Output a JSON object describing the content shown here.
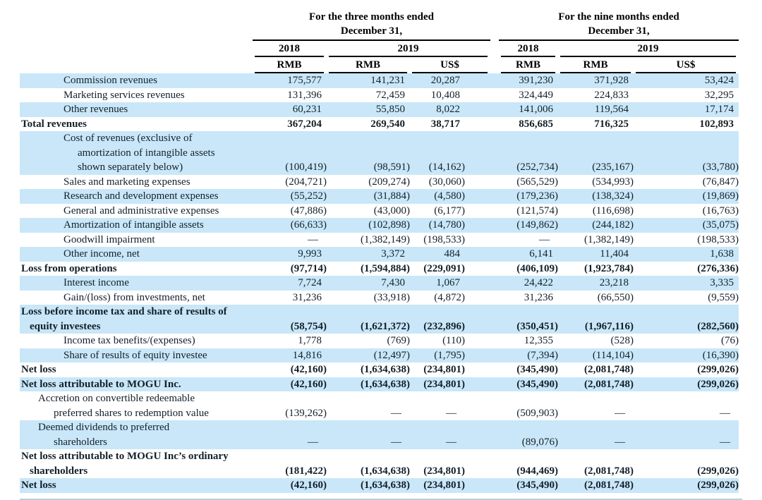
{
  "header": {
    "groups": [
      {
        "title1": "For the three months ended",
        "title2": "December 31,",
        "years": [
          {
            "label": "2018"
          },
          {
            "label": "2019"
          }
        ],
        "currencies": [
          "RMB",
          "RMB",
          "US$"
        ]
      },
      {
        "title1": "For the nine months ended",
        "title2": "December 31,",
        "years": [
          {
            "label": "2018"
          },
          {
            "label": "2019"
          }
        ],
        "currencies": [
          "RMB",
          "RMB",
          "US$"
        ]
      }
    ]
  },
  "rows": [
    {
      "shaded": true,
      "bold": false,
      "lines": [
        {
          "t": "Commission revenues",
          "i": 4
        }
      ],
      "values": [
        "175,577",
        "141,231",
        "20,287",
        "391,230",
        "371,928",
        "53,424"
      ]
    },
    {
      "shaded": false,
      "bold": false,
      "lines": [
        {
          "t": "Marketing services revenues",
          "i": 4
        }
      ],
      "values": [
        "131,396",
        "72,459",
        "10,408",
        "324,449",
        "224,833",
        "32,295"
      ]
    },
    {
      "shaded": true,
      "bold": false,
      "lines": [
        {
          "t": "Other revenues",
          "i": 4
        }
      ],
      "values": [
        "60,231",
        "55,850",
        "8,022",
        "141,006",
        "119,564",
        "17,174"
      ]
    },
    {
      "shaded": false,
      "bold": true,
      "lines": [
        {
          "t": "Total revenues",
          "i": 0
        }
      ],
      "values": [
        "367,204",
        "269,540",
        "38,717",
        "856,685",
        "716,325",
        "102,893"
      ]
    },
    {
      "shaded": true,
      "bold": false,
      "lines": [
        {
          "t": "Cost of revenues (exclusive of",
          "i": 4
        },
        {
          "t": "amortization of intangible assets",
          "i": 5
        },
        {
          "t": "shown separately below)",
          "i": 5
        }
      ],
      "values": [
        "(100,419)",
        "(98,591)",
        "(14,162)",
        "(252,734)",
        "(235,167)",
        "(33,780)"
      ]
    },
    {
      "shaded": false,
      "bold": false,
      "lines": [
        {
          "t": "Sales and marketing expenses",
          "i": 4
        }
      ],
      "values": [
        "(204,721)",
        "(209,274)",
        "(30,060)",
        "(565,529)",
        "(534,993)",
        "(76,847)"
      ]
    },
    {
      "shaded": true,
      "bold": false,
      "lines": [
        {
          "t": "Research and development expenses",
          "i": 4
        }
      ],
      "values": [
        "(55,252)",
        "(31,884)",
        "(4,580)",
        "(179,236)",
        "(138,324)",
        "(19,869)"
      ]
    },
    {
      "shaded": false,
      "bold": false,
      "lines": [
        {
          "t": "General and administrative expenses",
          "i": 4
        }
      ],
      "values": [
        "(47,886)",
        "(43,000)",
        "(6,177)",
        "(121,574)",
        "(116,698)",
        "(16,763)"
      ]
    },
    {
      "shaded": true,
      "bold": false,
      "lines": [
        {
          "t": "Amortization of intangible assets",
          "i": 4
        }
      ],
      "values": [
        "(66,633)",
        "(102,898)",
        "(14,780)",
        "(149,862)",
        "(244,182)",
        "(35,075)"
      ]
    },
    {
      "shaded": false,
      "bold": false,
      "lines": [
        {
          "t": "Goodwill impairment",
          "i": 4
        }
      ],
      "values": [
        "—",
        "(1,382,149)",
        "(198,533)",
        "—",
        "(1,382,149)",
        "(198,533)"
      ]
    },
    {
      "shaded": true,
      "bold": false,
      "lines": [
        {
          "t": "Other income, net",
          "i": 4
        }
      ],
      "values": [
        "9,993",
        "3,372",
        "484",
        "6,141",
        "11,404",
        "1,638"
      ]
    },
    {
      "shaded": false,
      "bold": true,
      "lines": [
        {
          "t": "Loss from operations",
          "i": 0
        }
      ],
      "values": [
        "(97,714)",
        "(1,594,884)",
        "(229,091)",
        "(406,109)",
        "(1,923,784)",
        "(276,336)"
      ]
    },
    {
      "shaded": true,
      "bold": false,
      "lines": [
        {
          "t": "Interest income",
          "i": 4
        }
      ],
      "values": [
        "7,724",
        "7,430",
        "1,067",
        "24,422",
        "23,218",
        "3,335"
      ]
    },
    {
      "shaded": false,
      "bold": false,
      "lines": [
        {
          "t": "Gain/(loss) from investments, net",
          "i": 4
        }
      ],
      "values": [
        "31,236",
        "(33,918)",
        "(4,872)",
        "31,236",
        "(66,550)",
        "(9,559)"
      ]
    },
    {
      "shaded": true,
      "bold": true,
      "lines": [
        {
          "t": "Loss before income tax and share of results of",
          "i": 0
        },
        {
          "t": "equity investees",
          "i": 1
        }
      ],
      "values": [
        "(58,754)",
        "(1,621,372)",
        "(232,896)",
        "(350,451)",
        "(1,967,116)",
        "(282,560)"
      ]
    },
    {
      "shaded": false,
      "bold": false,
      "lines": [
        {
          "t": "Income tax benefits/(expenses)",
          "i": 4
        }
      ],
      "values": [
        "1,778",
        "(769)",
        "(110)",
        "12,355",
        "(528)",
        "(76)"
      ]
    },
    {
      "shaded": true,
      "bold": false,
      "lines": [
        {
          "t": "Share of results of equity investee",
          "i": 4
        }
      ],
      "values": [
        "14,816",
        "(12,497)",
        "(1,795)",
        "(7,394)",
        "(114,104)",
        "(16,390)"
      ]
    },
    {
      "shaded": false,
      "bold": true,
      "lines": [
        {
          "t": "Net loss",
          "i": 0
        }
      ],
      "values": [
        "(42,160)",
        "(1,634,638)",
        "(234,801)",
        "(345,490)",
        "(2,081,748)",
        "(299,026)"
      ]
    },
    {
      "shaded": true,
      "bold": true,
      "lines": [
        {
          "t": "Net loss attributable to MOGU Inc.",
          "i": 0
        }
      ],
      "values": [
        "(42,160)",
        "(1,634,638)",
        "(234,801)",
        "(345,490)",
        "(2,081,748)",
        "(299,026)"
      ]
    },
    {
      "shaded": false,
      "bold": false,
      "lines": [
        {
          "t": "Accretion on convertible redeemable",
          "i": 2
        },
        {
          "t": "preferred shares to redemption value",
          "i": 3
        }
      ],
      "values": [
        "(139,262)",
        "—",
        "—",
        "(509,903)",
        "—",
        "—"
      ]
    },
    {
      "shaded": true,
      "bold": false,
      "lines": [
        {
          "t": "Deemed dividends to preferred",
          "i": 2
        },
        {
          "t": "shareholders",
          "i": 3
        }
      ],
      "values": [
        "—",
        "—",
        "—",
        "(89,076)",
        "—",
        "—"
      ]
    },
    {
      "shaded": false,
      "bold": true,
      "lines": [
        {
          "t": "Net loss attributable to MOGU Inc’s ordinary",
          "i": 0
        },
        {
          "t": "shareholders",
          "i": 1
        }
      ],
      "values": [
        "(181,422)",
        "(1,634,638)",
        "(234,801)",
        "(944,469)",
        "(2,081,748)",
        "(299,026)"
      ]
    },
    {
      "shaded": true,
      "bold": true,
      "lines": [
        {
          "t": "Net loss",
          "i": 0
        }
      ],
      "values": [
        "(42,160)",
        "(1,634,638)",
        "(234,801)",
        "(345,490)",
        "(2,081,748)",
        "(299,026)"
      ]
    }
  ],
  "colors": {
    "stripe": "#c9e7f8",
    "text": "#13202a",
    "rule": "#000000",
    "divider": "#b9cfdc"
  }
}
